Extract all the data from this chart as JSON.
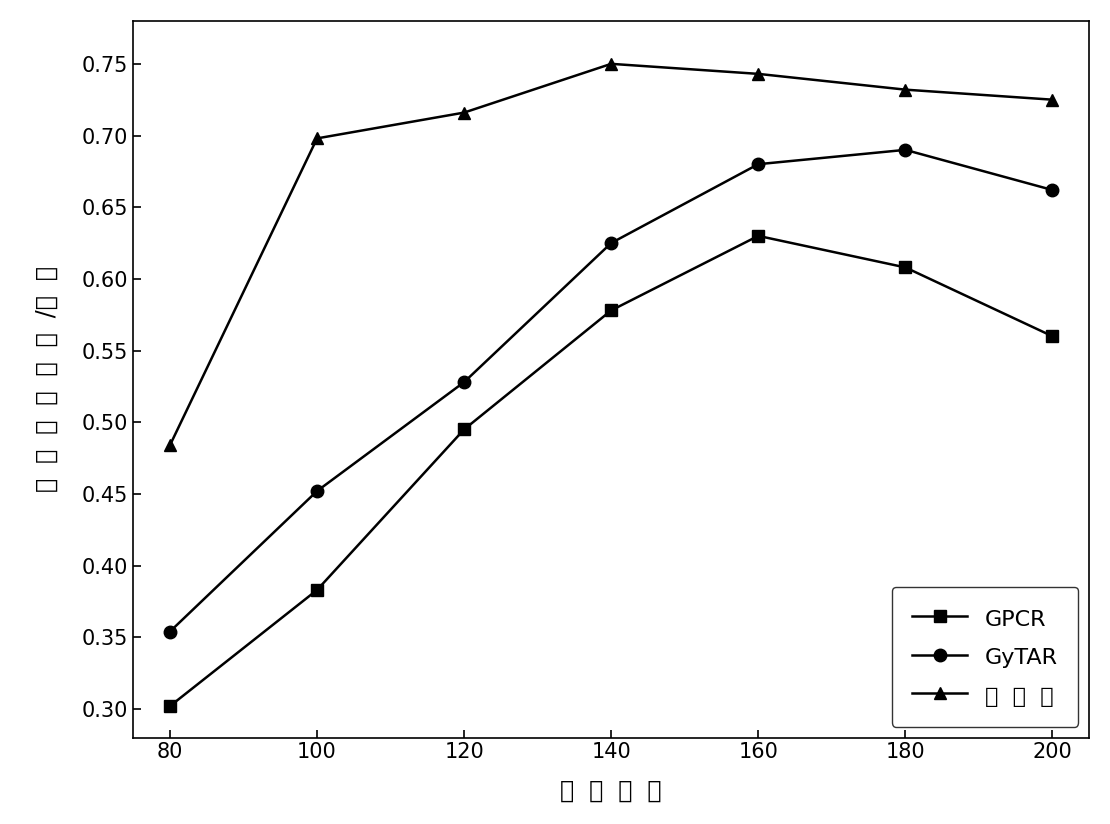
{
  "x": [
    80,
    100,
    120,
    140,
    160,
    180,
    200
  ],
  "GPCR": [
    0.302,
    0.383,
    0.495,
    0.578,
    0.63,
    0.608,
    0.56
  ],
  "GyTAR": [
    0.354,
    0.452,
    0.528,
    0.625,
    0.68,
    0.69,
    0.662
  ],
  "BenFaMing": [
    0.484,
    0.698,
    0.716,
    0.75,
    0.743,
    0.732,
    0.725
  ],
  "xlabel": "节  点  数  目",
  "ylabel_chars": [
    "投",
    " ",
    "递",
    " ",
    "率",
    " ",
    "（",
    " ",
    "比",
    " ",
    "特",
    " ",
    "/秒",
    " ",
    "）"
  ],
  "legend_GPCR": "GPCR",
  "legend_GyTAR": "GyTAR",
  "legend_BenFaMing": "本  发  明",
  "ylim": [
    0.28,
    0.78
  ],
  "yticks": [
    0.3,
    0.35,
    0.4,
    0.45,
    0.5,
    0.55,
    0.6,
    0.65,
    0.7,
    0.75
  ],
  "xticks": [
    80,
    100,
    120,
    140,
    160,
    180,
    200
  ],
  "line_color": "#000000",
  "marker_square": "s",
  "marker_circle": "o",
  "marker_triangle": "^",
  "markersize": 9,
  "linewidth": 1.8,
  "legend_fontsize": 16,
  "axis_label_fontsize": 17,
  "tick_fontsize": 15
}
